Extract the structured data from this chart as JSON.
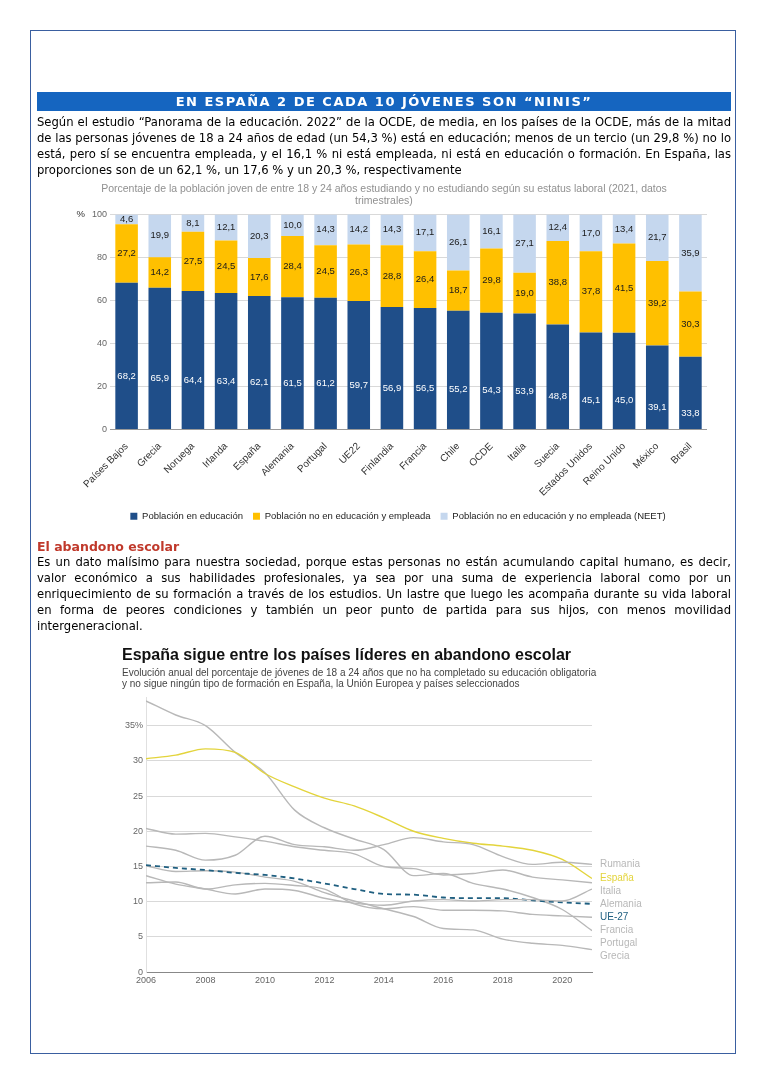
{
  "chart_data": [
    {
      "type": "bar",
      "stacked": true,
      "title": "Porcentaje de la población joven de entre 18 y 24 años estudiando y no estudiando según su estatus laboral (2021, datos trimestrales)",
      "ylabel": "%",
      "annotations": [
        "EN ESPAÑA 2 DE CADA 10 JÓVENES SON “NINIS”",
        "Según el estudio “Panorama de la educación. 2022” de la OCDE, de media, en los países de la OCDE, más de la mitad de las personas jóvenes de 18 a 24 años de edad (un 54,3 %) está en educación; menos de un tercio (un 29,8 %) no lo está, pero sí se encuentra empleada, y el 16,1 % ni está empleada, ni está en educación o formación. En España, las proporciones son de un 62,1 %, un 17,6 % y un 20,3 %, respectivamente"
      ],
      "categories": [
        "Países Bajos",
        "Grecia",
        "Noruega",
        "Irlanda",
        "España",
        "Alemania",
        "Portugal",
        "UE22",
        "Finlandia",
        "Francia",
        "Chile",
        "OCDE",
        "Italia",
        "Suecia",
        "Estados Unidos",
        "Reino Unido",
        "México",
        "Brasil"
      ],
      "series": [
        {
          "name": "Población en educación",
          "color": "#1f4e89",
          "values": [
            68.2,
            65.9,
            64.4,
            63.4,
            62.1,
            61.5,
            61.2,
            59.7,
            56.9,
            56.5,
            55.2,
            54.3,
            53.9,
            48.8,
            45.1,
            45.0,
            39.1,
            33.8
          ],
          "value_labels": [
            "68,2",
            "65,9",
            "64,4",
            "63,4",
            "62,1",
            "61,5",
            "61,2",
            "59,7",
            "56,9",
            "56,5",
            "55,2",
            "54,3",
            "53,9",
            "48,8",
            "45,1",
            "45,0",
            "39,1",
            "33,8"
          ]
        },
        {
          "name": "Población no en educación y empleada",
          "color": "#ffc000",
          "values": [
            27.2,
            14.2,
            27.5,
            24.5,
            17.6,
            28.4,
            24.5,
            26.3,
            28.8,
            26.4,
            18.7,
            29.8,
            19.0,
            38.8,
            37.8,
            41.5,
            39.2,
            30.3
          ],
          "value_labels": [
            "27,2",
            "14,2",
            "27,5",
            "24,5",
            "17,6",
            "28,4",
            "24,5",
            "26,3",
            "28,8",
            "26,4",
            "18,7",
            "29,8",
            "19,0",
            "38,8",
            "37,8",
            "41,5",
            "39,2",
            "30,3"
          ]
        },
        {
          "name": "Población no en educación y no empleada (NEET)",
          "color": "#c5d7ee",
          "values": [
            4.6,
            19.9,
            8.1,
            12.1,
            20.3,
            10.0,
            14.3,
            14.2,
            14.3,
            17.1,
            26.1,
            16.1,
            27.1,
            12.4,
            17.0,
            13.4,
            21.7,
            35.9
          ],
          "value_labels": [
            "4,6",
            "19,9",
            "8,1",
            "12,1",
            "20,3",
            "10,0",
            "14,3",
            "14,2",
            "14,3",
            "17,1",
            "26,1",
            "16,1",
            "27,1",
            "12,4",
            "17,0",
            "13,4",
            "21,7",
            "35,9"
          ]
        }
      ],
      "ylim": [
        0,
        100
      ],
      "yticks": [
        0,
        20,
        40,
        60,
        80,
        100
      ],
      "grid": "y",
      "legend": "bottom"
    },
    {
      "type": "line",
      "title": "España sigue entre los países líderes en abandono escolar",
      "subtitle": "Evolución anual del porcentaje de jóvenes de 18 a 24 años que no ha completado su educación obligatoria y no sigue ningún tipo de formación en España, la Unión Europea y países seleccionados",
      "annotations": [
        "El abandono escolar",
        "Es un dato malísimo para nuestra sociedad, porque estas personas no están acumulando capital humano, es decir, valor económico a sus habilidades profesionales, ya sea por una suma de experiencia laboral como por un enriquecimiento de su formación a través de los estudios. Un lastre que luego les acompaña durante su vida laboral en forma de peores condiciones y también un peor punto de partida para sus hijos, con menos movilidad intergeneracional."
      ],
      "x": [
        2006,
        2007,
        2008,
        2009,
        2010,
        2011,
        2012,
        2013,
        2014,
        2015,
        2016,
        2017,
        2018,
        2019,
        2020,
        2021
      ],
      "series": [
        {
          "name": "Rumania",
          "color": "#b8b8b8",
          "values": [
            17.9,
            17.3,
            15.9,
            16.6,
            19.3,
            18.1,
            17.8,
            17.3,
            18.1,
            19.1,
            18.5,
            18.1,
            16.4,
            15.3,
            15.6,
            15.3
          ]
        },
        {
          "name": "España",
          "color": "#e3d43c",
          "values": [
            30.3,
            30.8,
            31.7,
            31.2,
            28.2,
            26.3,
            24.7,
            23.6,
            21.9,
            20.0,
            19.0,
            18.3,
            17.9,
            17.3,
            16.0,
            13.3
          ]
        },
        {
          "name": "Italia",
          "color": "#b8b8b8",
          "values": [
            20.4,
            19.6,
            19.7,
            19.2,
            18.6,
            17.8,
            17.3,
            16.8,
            15.0,
            14.7,
            13.8,
            14.0,
            14.5,
            13.5,
            13.1,
            12.7
          ]
        },
        {
          "name": "Alemania",
          "color": "#b8b8b8",
          "values": [
            13.7,
            12.5,
            11.8,
            11.1,
            11.8,
            11.6,
            10.5,
            9.8,
            9.5,
            10.1,
            10.3,
            10.1,
            10.3,
            10.3,
            10.1,
            11.8
          ]
        },
        {
          "name": "UE-27",
          "color": "#1f5f80",
          "line_style": "dashed",
          "values": [
            15.2,
            14.8,
            14.5,
            14.1,
            13.8,
            13.3,
            12.6,
            11.8,
            11.1,
            11.0,
            10.6,
            10.5,
            10.5,
            10.2,
            9.9,
            9.7
          ]
        },
        {
          "name": "Francia",
          "color": "#b8b8b8",
          "values": [
            12.7,
            12.8,
            11.8,
            12.4,
            12.6,
            12.3,
            11.8,
            9.7,
            9.0,
            9.3,
            8.8,
            8.8,
            8.7,
            8.2,
            8.0,
            7.8
          ]
        },
        {
          "name": "Portugal",
          "color": "#b8b8b8",
          "values": [
            38.5,
            36.5,
            35.0,
            31.2,
            28.3,
            23.0,
            20.5,
            18.9,
            17.4,
            13.7,
            14.0,
            12.6,
            11.8,
            10.6,
            8.9,
            5.9
          ]
        },
        {
          "name": "Grecia",
          "color": "#b8b8b8",
          "values": [
            15.1,
            14.3,
            14.4,
            14.2,
            13.5,
            12.9,
            11.3,
            10.1,
            9.0,
            7.9,
            6.2,
            6.0,
            4.7,
            4.1,
            3.8,
            3.2
          ]
        }
      ],
      "xlim": [
        2006,
        2021
      ],
      "xticks": [
        2006,
        2008,
        2010,
        2012,
        2014,
        2016,
        2018,
        2020
      ],
      "ylim": [
        0,
        39
      ],
      "yticks": [
        0,
        5,
        10,
        15,
        20,
        25,
        30,
        {
          "value": 35,
          "label": "35%"
        }
      ],
      "grid": "y",
      "legend": false,
      "marker": "none",
      "line_style": "solid"
    }
  ]
}
